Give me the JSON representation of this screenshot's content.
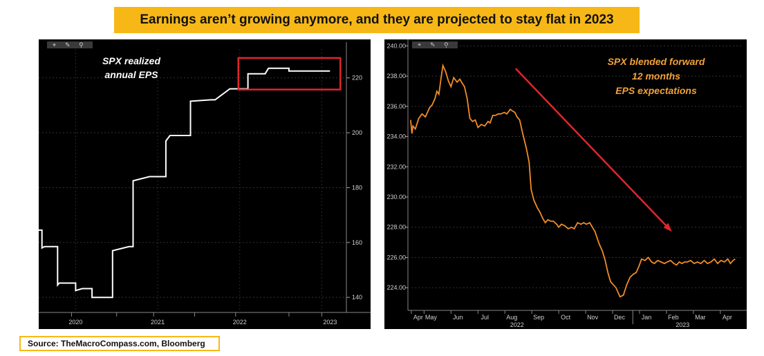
{
  "header": {
    "title": "Earnings aren’t growing anymore, and they are projected to stay flat in 2023"
  },
  "footer": {
    "source": "Source: TheMacroCompass.com, Bloomberg"
  },
  "colors": {
    "banner": "#f7b817",
    "left_line": "#ffffff",
    "right_line": "#f28c28",
    "highlight_box": "#e0262b",
    "trend_arrow": "#e0262b",
    "right_annotation": "#f2a23a"
  },
  "chart_data": [
    {
      "type": "line",
      "title": "SPX realized annual EPS",
      "annotation_lines": [
        "SPX realized",
        "annual EPS"
      ],
      "series": [
        {
          "name": "SPX realized annual EPS",
          "x": [
            2019.55,
            2019.59,
            2019.59,
            2019.62,
            2019.62,
            2019.78,
            2019.78,
            2019.8,
            2019.8,
            2019.9,
            2019.9,
            2020.0,
            2020.0,
            2020.08,
            2020.08,
            2020.15,
            2020.15,
            2020.2,
            2020.2,
            2020.33,
            2020.33,
            2020.43,
            2020.43,
            2020.45,
            2020.45,
            2020.65,
            2020.65,
            2020.68,
            2020.68,
            2020.7,
            2020.7,
            2020.9,
            2020.9,
            2020.92,
            2020.92,
            2021.1,
            2021.1,
            2021.15,
            2021.15,
            2021.35,
            2021.35,
            2021.4,
            2021.4,
            2021.65,
            2021.65,
            2021.7,
            2021.7,
            2021.88,
            2021.88,
            2022.1,
            2022.1,
            2022.28,
            2022.28,
            2022.31,
            2022.31,
            2022.35,
            2022.35,
            2022.6,
            2022.6,
            2022.8,
            2022.8,
            2023.1
          ],
          "values": [
            164.5,
            164.5,
            158,
            158.5,
            158.5,
            158.5,
            144.5,
            145.2,
            145.2,
            145.2,
            145.2,
            145.2,
            142.5,
            143.2,
            143.2,
            143.2,
            143.2,
            143.2,
            140,
            140,
            140,
            140,
            140,
            140,
            157,
            158.5,
            158.5,
            158.5,
            158.5,
            158.5,
            182.5,
            184,
            184,
            184,
            184,
            184,
            197,
            199,
            199,
            199,
            199,
            199,
            211.5,
            212,
            212,
            212,
            212,
            216,
            216,
            216,
            221.5,
            221.5,
            221.5,
            221.5,
            221.5,
            223.5,
            223.5,
            223.5,
            222.5,
            222.5,
            222.5,
            222.5
          ]
        }
      ],
      "x_ticks": [
        {
          "label": "2020",
          "value": 2020.0
        },
        {
          "label": "2021",
          "value": 2021.0
        },
        {
          "label": "2022",
          "value": 2022.0
        },
        {
          "label": "2023",
          "value": 2023.0
        }
      ],
      "y_ticks": [
        140,
        160,
        180,
        200,
        220
      ],
      "xlim": [
        2019.55,
        2023.3
      ],
      "ylim": [
        134.5,
        230.5
      ],
      "highlight_box": {
        "x": [
          2022.0,
          2023.1
        ],
        "y": [
          216,
          227
        ]
      },
      "grid": true
    },
    {
      "type": "line",
      "title": "SPX blended forward 12 months EPS expectations",
      "annotation_lines": [
        "SPX blended forward",
        "12 months",
        "EPS expectations"
      ],
      "series": [
        {
          "name": "SPX blended forward 12m EPS",
          "x": [
            0,
            0.1,
            0.17,
            0.35,
            0.6,
            0.85,
            1.1,
            1.4,
            1.6,
            1.8,
            1.95,
            2.1,
            2.25,
            2.4,
            2.6,
            2.8,
            3.0,
            3.2,
            3.45,
            3.65,
            3.85,
            4.0,
            4.2,
            4.4,
            4.6,
            4.8,
            5.0,
            5.25,
            5.5,
            5.75,
            5.9,
            6.1,
            6.3,
            6.5,
            6.7,
            6.95,
            7.15,
            7.4,
            7.55,
            7.75,
            7.9,
            8.1,
            8.3,
            8.6,
            8.8,
            8.95,
            9.15,
            9.4,
            9.6,
            9.8,
            10.0,
            10.2,
            10.4,
            10.6,
            10.85,
            11.0,
            11.2,
            11.45,
            11.7,
            11.95,
            12.15,
            12.4,
            12.65,
            12.85,
            13.05,
            13.3,
            13.5,
            13.7,
            13.85,
            14.0,
            14.25,
            14.45,
            14.65,
            14.85,
            15.05,
            15.25,
            15.4,
            15.55,
            15.8,
            16.05,
            16.3,
            16.55,
            16.75,
            16.95,
            17.15,
            17.4,
            17.65,
            17.9,
            18.1,
            18.35,
            18.6,
            18.85,
            19.05,
            19.3,
            19.55,
            19.75,
            19.95,
            20.15,
            20.35,
            20.55,
            20.8,
            21.05,
            21.3,
            21.55,
            21.8,
            22.05,
            22.3,
            22.55,
            22.8,
            23.05,
            23.3,
            23.55,
            23.75,
            23.95,
            24.1
          ],
          "values": [
            235.1,
            234.2,
            234.7,
            234.5,
            235.2,
            235.5,
            235.3,
            235.9,
            236.1,
            236.5,
            237.0,
            236.8,
            237.8,
            238.7,
            238.3,
            237.7,
            237.3,
            237.9,
            237.6,
            237.8,
            237.5,
            237.3,
            236.5,
            235.2,
            235.0,
            235.1,
            234.6,
            234.8,
            234.7,
            235.0,
            234.9,
            235.4,
            235.4,
            235.5,
            235.5,
            235.6,
            235.5,
            235.8,
            235.7,
            235.6,
            235.3,
            235.1,
            234.3,
            233.2,
            232.3,
            230.5,
            229.8,
            229.3,
            229.0,
            228.6,
            228.3,
            228.5,
            228.4,
            228.4,
            228.2,
            228.0,
            228.2,
            228.1,
            227.9,
            228.0,
            227.9,
            228.3,
            228.2,
            228.3,
            228.2,
            228.3,
            228.0,
            227.7,
            227.3,
            226.9,
            226.4,
            225.8,
            225.0,
            224.4,
            224.2,
            224.0,
            223.7,
            223.4,
            223.5,
            224.2,
            224.7,
            224.9,
            225.0,
            225.4,
            225.9,
            225.8,
            226.0,
            225.7,
            225.6,
            225.8,
            225.7,
            225.6,
            225.7,
            225.8,
            225.6,
            225.5,
            225.7,
            225.6,
            225.7,
            225.7,
            225.8,
            225.6,
            225.7,
            225.6,
            225.8,
            225.6,
            225.7,
            225.9,
            225.6,
            225.8,
            225.7,
            225.9,
            225.6,
            225.8,
            225.9
          ]
        }
      ],
      "x_ticks": [
        {
          "label": "Apr",
          "value": 0.05
        },
        {
          "label": "May",
          "value": 1.0
        },
        {
          "label": "Jun",
          "value": 3.0
        },
        {
          "label": "Jul",
          "value": 5.0
        },
        {
          "label": "Aug",
          "value": 7.0
        },
        {
          "label": "Sep",
          "value": 9.0
        },
        {
          "label": "Oct",
          "value": 11.0
        },
        {
          "label": "Nov",
          "value": 13.0
        },
        {
          "label": "Dec",
          "value": 15.0
        },
        {
          "label": "Jan",
          "value": 17.0
        },
        {
          "label": "Feb",
          "value": 19.0
        },
        {
          "label": "Mar",
          "value": 21.0
        },
        {
          "label": "Apr",
          "value": 23.0
        }
      ],
      "year_labels": [
        {
          "label": "2022",
          "value": 7.9
        },
        {
          "label": "2023",
          "value": 20.2
        }
      ],
      "y_ticks": [
        "224.00",
        "226.00",
        "228.00",
        "230.00",
        "232.00",
        "234.00",
        "236.00",
        "238.00",
        "240.00"
      ],
      "xlim": [
        -0.2,
        24.6
      ],
      "ylim": [
        222.5,
        240.2
      ],
      "trend_arrow": {
        "from": {
          "x": 7.8,
          "y": 238.5
        },
        "to": {
          "x": 19.3,
          "y": 227.8
        }
      },
      "grid": true
    }
  ]
}
